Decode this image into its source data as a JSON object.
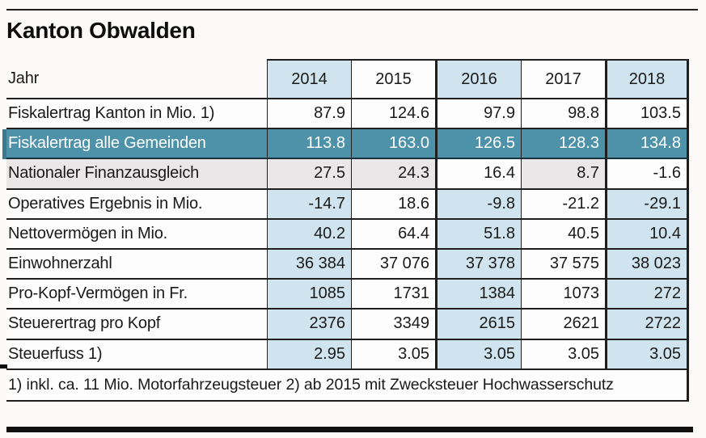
{
  "page": {
    "title": "Kanton Obwalden",
    "footnote": "1) inkl. ca. 11 Mio. Motorfahrzeugsteuer 2) ab 2015 mit Zwecksteuer Hochwasserschutz"
  },
  "colors": {
    "highlight_teal": "#4e92a9",
    "column_blue": "#cfe4ee",
    "row_gray": "#e9e7e8",
    "border": "#1f1f1f"
  },
  "table": {
    "header": {
      "label": "Jahr",
      "years": [
        "2014",
        "2015",
        "2016",
        "2017",
        "2018"
      ]
    },
    "rows": [
      {
        "label": "Fiskalertrag Kanton in Mio. 1)",
        "values": [
          "87.9",
          "124.6",
          "97.9",
          "98.8",
          "103.5"
        ]
      },
      {
        "label": "Fiskalertrag alle Gemeinden",
        "values": [
          "113.8",
          "163.0",
          "126.5",
          "128.3",
          "134.8"
        ],
        "highlight": true
      },
      {
        "label": "Nationaler Finanzausgleich",
        "values": [
          "27.5",
          "24.3",
          "16.4",
          "8.7",
          "-1.6"
        ]
      },
      {
        "label": "Operatives Ergebnis in Mio.",
        "values": [
          "-14.7",
          "18.6",
          "-9.8",
          "-21.2",
          "-29.1"
        ]
      },
      {
        "label": "Nettovermögen in Mio.",
        "values": [
          "40.2",
          "64.4",
          "51.8",
          "40.5",
          "10.4"
        ]
      },
      {
        "label": "Einwohnerzahl",
        "values": [
          "36 384",
          "37 076",
          "37 378",
          "37 575",
          "38 023"
        ]
      },
      {
        "label": "Pro-Kopf-Vermögen in Fr.",
        "values": [
          "1085",
          "1731",
          "1384",
          "1073",
          "272"
        ]
      },
      {
        "label": "Steuerertrag pro Kopf",
        "values": [
          "2376",
          "3349",
          "2615",
          "2621",
          "2722"
        ]
      },
      {
        "label": "Steuerfuss 1)",
        "values": [
          "2.95",
          "3.05",
          "3.05",
          "3.05",
          "3.05"
        ]
      }
    ]
  },
  "chart_data": {
    "type": "table",
    "title": "Kanton Obwalden",
    "categories": [
      "2014",
      "2015",
      "2016",
      "2017",
      "2018"
    ],
    "series": [
      {
        "name": "Fiskalertrag Kanton in Mio. 1)",
        "values": [
          87.9,
          124.6,
          97.9,
          98.8,
          103.5
        ]
      },
      {
        "name": "Fiskalertrag alle Gemeinden",
        "values": [
          113.8,
          163.0,
          126.5,
          128.3,
          134.8
        ]
      },
      {
        "name": "Nationaler Finanzausgleich",
        "values": [
          27.5,
          24.3,
          16.4,
          8.7,
          -1.6
        ]
      },
      {
        "name": "Operatives Ergebnis in Mio.",
        "values": [
          -14.7,
          18.6,
          -9.8,
          -21.2,
          -29.1
        ]
      },
      {
        "name": "Nettovermögen in Mio.",
        "values": [
          40.2,
          64.4,
          51.8,
          40.5,
          10.4
        ]
      },
      {
        "name": "Einwohnerzahl",
        "values": [
          36384,
          37076,
          37378,
          37575,
          38023
        ]
      },
      {
        "name": "Pro-Kopf-Vermögen in Fr.",
        "values": [
          1085,
          1731,
          1384,
          1073,
          272
        ]
      },
      {
        "name": "Steuerertrag pro Kopf",
        "values": [
          2376,
          3349,
          2615,
          2621,
          2722
        ]
      },
      {
        "name": "Steuerfuss 1)",
        "values": [
          2.95,
          3.05,
          3.05,
          3.05,
          3.05
        ]
      }
    ],
    "footnote": "1) inkl. ca. 11 Mio. Motorfahrzeugsteuer 2) ab 2015 mit Zwecksteuer Hochwasserschutz",
    "highlighted_row": "Fiskalertrag alle Gemeinden",
    "highlighted_columns": [
      "2014",
      "2016",
      "2018"
    ]
  }
}
